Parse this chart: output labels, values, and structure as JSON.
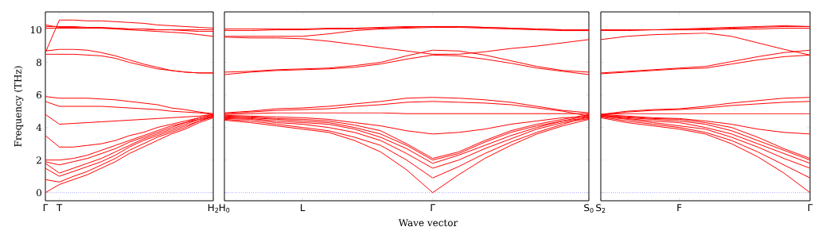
{
  "chart_data": [
    {
      "type": "line",
      "ylabel": "Frequency (THz)",
      "tick_labels": "xy",
      "categories": [
        "Γ",
        "T",
        null,
        null,
        null,
        null,
        null,
        null,
        null,
        null,
        null,
        null,
        "H$_{2}$"
      ],
      "ylim": [
        -0.5,
        11.1
      ],
      "yticks": [
        0,
        2,
        4,
        6,
        8,
        10
      ],
      "ref_lines": [
        {
          "axis": "y",
          "value": 0,
          "color": "#0000ff",
          "line_style": "dotted"
        }
      ],
      "series": [
        {
          "color": "#ff0000",
          "values": [
            0,
            0.5,
            0.8,
            1.1,
            1.5,
            1.9,
            2.4,
            2.8,
            3.2,
            3.6,
            3.9,
            4.3,
            4.6
          ]
        },
        {
          "color": "#ff0000",
          "values": [
            0.8,
            0.65,
            1.0,
            1.3,
            1.7,
            2.1,
            2.6,
            3.0,
            3.4,
            3.7,
            4.0,
            4.4,
            4.65
          ]
        },
        {
          "color": "#ff0000",
          "values": [
            1.5,
            1.0,
            1.3,
            1.6,
            1.9,
            2.3,
            2.8,
            3.2,
            3.5,
            3.8,
            4.1,
            4.4,
            4.7
          ]
        },
        {
          "color": "#ff0000",
          "values": [
            1.8,
            1.2,
            1.5,
            1.8,
            2.1,
            2.5,
            2.9,
            3.3,
            3.6,
            3.9,
            4.2,
            4.5,
            4.7
          ]
        },
        {
          "color": "#ff0000",
          "values": [
            1.9,
            1.7,
            1.9,
            2.1,
            2.4,
            2.7,
            3.1,
            3.4,
            3.7,
            4.0,
            4.3,
            4.5,
            4.7
          ]
        },
        {
          "color": "#ff0000",
          "values": [
            2.0,
            2.0,
            2.1,
            2.3,
            2.6,
            2.9,
            3.2,
            3.5,
            3.8,
            4.1,
            4.3,
            4.6,
            4.75
          ]
        },
        {
          "color": "#ff0000",
          "values": [
            3.5,
            2.8,
            2.8,
            2.9,
            3.0,
            3.2,
            3.5,
            3.7,
            4.0,
            4.2,
            4.4,
            4.6,
            4.8
          ]
        },
        {
          "color": "#ff0000",
          "values": [
            4.8,
            4.2,
            4.25,
            4.3,
            4.35,
            4.4,
            4.45,
            4.5,
            4.55,
            4.6,
            4.65,
            4.7,
            4.8
          ]
        },
        {
          "color": "#ff0000",
          "values": [
            5.6,
            5.3,
            5.3,
            5.3,
            5.3,
            5.25,
            5.2,
            5.15,
            5.1,
            5.0,
            4.95,
            4.9,
            4.8
          ]
        },
        {
          "color": "#ff0000",
          "values": [
            5.9,
            5.8,
            5.8,
            5.8,
            5.75,
            5.7,
            5.6,
            5.5,
            5.4,
            5.2,
            5.1,
            4.95,
            4.85
          ]
        },
        {
          "color": "#ff0000",
          "values": [
            8.5,
            8.5,
            8.5,
            8.45,
            8.4,
            8.25,
            8.0,
            7.8,
            7.6,
            7.5,
            7.4,
            7.35,
            7.35
          ]
        },
        {
          "color": "#ff0000",
          "values": [
            8.7,
            8.8,
            8.8,
            8.75,
            8.6,
            8.4,
            8.15,
            7.9,
            7.7,
            7.5,
            7.4,
            7.35,
            7.35
          ]
        },
        {
          "color": "#ff0000",
          "values": [
            8.6,
            10.6,
            10.6,
            10.55,
            10.55,
            10.5,
            10.45,
            10.4,
            10.3,
            10.25,
            10.2,
            10.15,
            10.1
          ]
        },
        {
          "color": "#ff0000",
          "values": [
            10.3,
            10.15,
            10.15,
            10.1,
            10.1,
            10.05,
            10.0,
            9.95,
            9.9,
            9.85,
            9.8,
            9.7,
            9.6
          ]
        },
        {
          "color": "#ff0000",
          "values": [
            10.2,
            10.2,
            10.2,
            10.15,
            10.15,
            10.1,
            10.05,
            10.05,
            10.0,
            10.0,
            9.95,
            9.9,
            9.9
          ]
        },
        {
          "color": "#ff0000",
          "values": [
            10.1,
            10.1,
            10.1,
            10.1,
            10.1,
            10.1,
            10.05,
            10.05,
            10.0,
            10.0,
            10.0,
            10.0,
            10.0
          ]
        }
      ]
    },
    {
      "type": "line",
      "xlabel": "Wave vector",
      "tick_labels": "x",
      "categories": [
        "H$_{0}$",
        null,
        null,
        "L",
        null,
        null,
        null,
        null,
        "Γ",
        null,
        null,
        null,
        null,
        null,
        "S$_{0}$"
      ],
      "ylim": [
        -0.5,
        11.1
      ],
      "yticks": [
        0,
        2,
        4,
        6,
        8,
        10
      ],
      "ref_lines": [
        {
          "axis": "y",
          "value": 0,
          "color": "#0000ff",
          "line_style": "dotted"
        }
      ],
      "series": [
        {
          "color": "#ff0000",
          "values": [
            4.45,
            4.3,
            4.1,
            3.9,
            3.7,
            3.2,
            2.5,
            1.4,
            0,
            1.1,
            2.1,
            2.9,
            3.6,
            4.1,
            4.5
          ]
        },
        {
          "color": "#ff0000",
          "values": [
            4.5,
            4.4,
            4.2,
            4.0,
            3.8,
            3.4,
            2.9,
            2.0,
            0.9,
            1.6,
            2.4,
            3.1,
            3.7,
            4.2,
            4.7
          ]
        },
        {
          "color": "#ff0000",
          "values": [
            4.55,
            4.5,
            4.3,
            4.2,
            4.0,
            3.7,
            3.2,
            2.4,
            1.5,
            2.0,
            2.7,
            3.3,
            3.9,
            4.3,
            4.55
          ]
        },
        {
          "color": "#ff0000",
          "values": [
            4.6,
            4.55,
            4.4,
            4.3,
            4.2,
            3.9,
            3.4,
            2.7,
            1.8,
            2.3,
            2.9,
            3.5,
            4.0,
            4.4,
            4.75
          ]
        },
        {
          "color": "#ff0000",
          "values": [
            4.65,
            4.6,
            4.5,
            4.4,
            4.3,
            4.0,
            3.6,
            2.9,
            2.0,
            2.4,
            3.1,
            3.7,
            4.1,
            4.4,
            4.6
          ]
        },
        {
          "color": "#ff0000",
          "values": [
            4.7,
            4.65,
            4.55,
            4.5,
            4.4,
            4.15,
            3.8,
            3.0,
            2.1,
            2.5,
            3.2,
            3.8,
            4.2,
            4.5,
            4.8
          ]
        },
        {
          "color": "#ff0000",
          "values": [
            4.75,
            4.7,
            4.65,
            4.6,
            4.5,
            4.3,
            4.1,
            3.8,
            3.6,
            3.7,
            3.9,
            4.2,
            4.4,
            4.6,
            4.65
          ]
        },
        {
          "color": "#ff0000",
          "values": [
            4.8,
            4.85,
            4.9,
            4.9,
            4.9,
            4.9,
            4.9,
            4.85,
            4.85,
            4.85,
            4.85,
            4.85,
            4.85,
            4.85,
            4.85
          ]
        },
        {
          "color": "#ff0000",
          "values": [
            4.85,
            4.95,
            5.05,
            5.1,
            5.15,
            5.3,
            5.4,
            5.55,
            5.6,
            5.55,
            5.5,
            5.4,
            5.2,
            5.0,
            4.7
          ]
        },
        {
          "color": "#ff0000",
          "values": [
            4.9,
            5.0,
            5.15,
            5.2,
            5.3,
            5.45,
            5.6,
            5.8,
            5.85,
            5.8,
            5.7,
            5.55,
            5.3,
            5.05,
            4.9
          ]
        },
        {
          "color": "#ff0000",
          "values": [
            7.25,
            7.4,
            7.5,
            7.55,
            7.6,
            7.7,
            7.9,
            8.2,
            8.45,
            8.4,
            8.2,
            7.95,
            7.65,
            7.45,
            7.25
          ]
        },
        {
          "color": "#ff0000",
          "values": [
            7.4,
            7.45,
            7.55,
            7.6,
            7.65,
            7.8,
            8.0,
            8.4,
            8.75,
            8.7,
            8.45,
            8.1,
            7.75,
            7.5,
            7.4
          ]
        },
        {
          "color": "#ff0000",
          "values": [
            9.55,
            9.5,
            9.5,
            9.45,
            9.3,
            9.1,
            8.9,
            8.7,
            8.5,
            8.5,
            8.65,
            8.85,
            9.0,
            9.2,
            9.4
          ]
        },
        {
          "color": "#ff0000",
          "values": [
            9.6,
            9.6,
            9.6,
            9.6,
            9.75,
            9.95,
            10.05,
            10.1,
            10.15,
            10.15,
            10.1,
            10.05,
            10.0,
            9.95,
            9.95
          ]
        },
        {
          "color": "#ff0000",
          "values": [
            9.95,
            9.95,
            10.0,
            10.0,
            10.05,
            10.05,
            10.1,
            10.15,
            10.2,
            10.2,
            10.15,
            10.1,
            10.05,
            10.0,
            10.0
          ]
        },
        {
          "color": "#ff0000",
          "values": [
            10.05,
            10.05,
            10.05,
            10.05,
            10.1,
            10.1,
            10.15,
            10.2,
            10.2,
            10.2,
            10.15,
            10.1,
            10.05,
            10.0,
            10.0
          ]
        }
      ]
    },
    {
      "type": "line",
      "tick_labels": "x",
      "categories": [
        "S$_{2}$",
        null,
        null,
        "F",
        null,
        null,
        null,
        null,
        "Γ"
      ],
      "ylim": [
        -0.5,
        11.1
      ],
      "yticks": [
        0,
        2,
        4,
        6,
        8,
        10
      ],
      "ref_lines": [
        {
          "axis": "y",
          "value": 0,
          "color": "#0000ff",
          "line_style": "dotted"
        }
      ],
      "series": [
        {
          "color": "#ff0000",
          "values": [
            4.6,
            4.3,
            4.1,
            3.9,
            3.6,
            3.0,
            2.2,
            1.2,
            0
          ]
        },
        {
          "color": "#ff0000",
          "values": [
            4.65,
            4.4,
            4.2,
            4.0,
            3.7,
            3.2,
            2.5,
            1.7,
            0.9
          ]
        },
        {
          "color": "#ff0000",
          "values": [
            4.7,
            4.5,
            4.3,
            4.1,
            3.9,
            3.4,
            2.8,
            2.1,
            1.5
          ]
        },
        {
          "color": "#ff0000",
          "values": [
            4.7,
            4.55,
            4.4,
            4.3,
            4.0,
            3.6,
            3.0,
            2.4,
            1.8
          ]
        },
        {
          "color": "#ff0000",
          "values": [
            4.75,
            4.6,
            4.5,
            4.4,
            4.2,
            3.8,
            3.2,
            2.6,
            2.0
          ]
        },
        {
          "color": "#ff0000",
          "values": [
            4.75,
            4.65,
            4.55,
            4.5,
            4.3,
            4.0,
            3.4,
            2.7,
            2.1
          ]
        },
        {
          "color": "#ff0000",
          "values": [
            4.8,
            4.7,
            4.6,
            4.55,
            4.4,
            4.2,
            3.9,
            3.7,
            3.6
          ]
        },
        {
          "color": "#ff0000",
          "values": [
            4.8,
            4.85,
            4.85,
            4.85,
            4.85,
            4.85,
            4.85,
            4.85,
            4.85
          ]
        },
        {
          "color": "#ff0000",
          "values": [
            4.8,
            4.95,
            5.05,
            5.1,
            5.2,
            5.35,
            5.45,
            5.55,
            5.6
          ]
        },
        {
          "color": "#ff0000",
          "values": [
            4.8,
            5.0,
            5.1,
            5.15,
            5.3,
            5.5,
            5.65,
            5.8,
            5.85
          ]
        },
        {
          "color": "#ff0000",
          "values": [
            7.3,
            7.4,
            7.5,
            7.6,
            7.65,
            7.9,
            8.15,
            8.35,
            8.45
          ]
        },
        {
          "color": "#ff0000",
          "values": [
            7.35,
            7.45,
            7.55,
            7.65,
            7.75,
            8.05,
            8.35,
            8.6,
            8.75
          ]
        },
        {
          "color": "#ff0000",
          "values": [
            9.4,
            9.6,
            9.7,
            9.75,
            9.8,
            9.6,
            9.2,
            8.8,
            8.45
          ]
        },
        {
          "color": "#ff0000",
          "values": [
            9.95,
            9.95,
            10.0,
            10.0,
            10.0,
            10.05,
            10.05,
            10.1,
            10.1
          ]
        },
        {
          "color": "#ff0000",
          "values": [
            10.0,
            10.0,
            10.0,
            10.0,
            10.05,
            10.1,
            10.15,
            10.2,
            10.2
          ]
        },
        {
          "color": "#ff0000",
          "values": [
            10.0,
            10.0,
            10.0,
            10.05,
            10.1,
            10.15,
            10.2,
            10.25,
            10.2
          ]
        }
      ]
    }
  ]
}
